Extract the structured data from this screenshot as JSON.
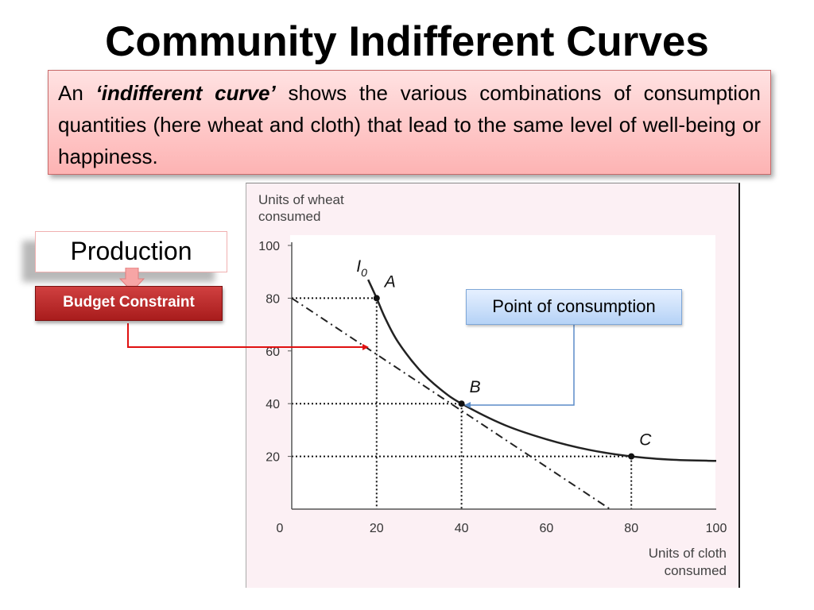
{
  "slide": {
    "title": "Community Indifferent Curves",
    "definition": {
      "prefix": "An ",
      "emphasis": "‘indifferent curve’",
      "body": " shows the various combinations of consumption quantities (here wheat and cloth) that lead to the same level of well-being or happiness."
    },
    "production_label": "Production",
    "budget_label": "Budget Constraint",
    "consumption_label": "Point of consumption",
    "colors": {
      "definition_box": "#fdb3b3",
      "budget_box": "#b82424",
      "connector": "#e01010",
      "callout": "#b5d2f6",
      "callout_line": "#5b8cc8"
    },
    "icons": [
      "down-arrow-icon",
      "connector-arrow-icon"
    ]
  },
  "chart_data": {
    "type": "line",
    "ylabel": "Units of wheat consumed",
    "ylabel_lines": [
      "Units of wheat",
      "consumed"
    ],
    "xlabel": "Units of cloth consumed",
    "xlabel_lines": [
      "Units of cloth",
      "consumed"
    ],
    "xlim": [
      0,
      100
    ],
    "ylim": [
      0,
      100
    ],
    "x_ticks": [
      0,
      20,
      40,
      60,
      80,
      100
    ],
    "y_ticks": [
      20,
      40,
      60,
      80,
      100
    ],
    "grid": false,
    "series": [
      {
        "name": "I0",
        "label_main": "I",
        "label_sub": "0",
        "style": "solid",
        "x": [
          18,
          20,
          22,
          25,
          30,
          35,
          40,
          50,
          60,
          70,
          80,
          90,
          100
        ],
        "y": [
          87,
          80,
          72.5,
          63.5,
          53,
          45.5,
          40,
          32,
          26.5,
          22.5,
          20,
          18.7,
          18.3
        ]
      },
      {
        "name": "Budget line",
        "style": "dash-dot",
        "x": [
          0,
          75
        ],
        "y": [
          80,
          0
        ]
      }
    ],
    "points": [
      {
        "label": "A",
        "x": 20,
        "y": 80
      },
      {
        "label": "B",
        "x": 40,
        "y": 40
      },
      {
        "label": "C",
        "x": 80,
        "y": 20
      }
    ]
  }
}
